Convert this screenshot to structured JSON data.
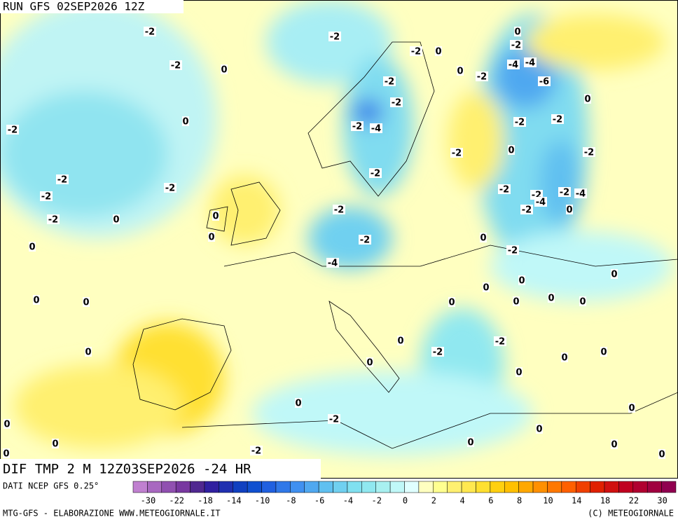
{
  "header": {
    "run": "RUN GFS 02SEP2026 12Z",
    "product": "DIF TMP 2 M 12Z03SEP2026 -24 HR"
  },
  "map": {
    "labels": [
      -2,
      -2,
      -2,
      0,
      0,
      -2,
      -2,
      0,
      0,
      -2,
      -4,
      -4,
      -6,
      -2,
      -2,
      0,
      -2,
      0,
      -2,
      -4,
      -2,
      -2,
      -2,
      0,
      -2,
      -2,
      -2,
      -2,
      -2,
      -2,
      -2,
      -2,
      -4,
      -4,
      -2,
      0,
      -2,
      0,
      -2,
      0,
      0,
      0,
      -2,
      0,
      -2,
      -4,
      0,
      0,
      0,
      0,
      0,
      0,
      0,
      0,
      0,
      -2,
      0,
      -2,
      0,
      0,
      0,
      0,
      0,
      0,
      0,
      0,
      -2,
      0,
      0,
      0,
      -2,
      0,
      0,
      0
    ]
  },
  "colorbar": {
    "source": "DATI NCEP GFS 0.25°",
    "ticks": [
      -30,
      -22,
      -18,
      -14,
      -10,
      -8,
      -6,
      -4,
      -2,
      0,
      2,
      4,
      6,
      8,
      10,
      14,
      18,
      22,
      30
    ],
    "colors": [
      "#c080d0",
      "#a868c0",
      "#9050b0",
      "#7838a0",
      "#502890",
      "#3020a0",
      "#2030b0",
      "#1040c0",
      "#1050d0",
      "#2060e0",
      "#3078e8",
      "#4090f0",
      "#50a8f0",
      "#60c0f0",
      "#70d0f0",
      "#80e0f0",
      "#90e8f0",
      "#a8f0f0",
      "#c0f8f8",
      "#e0ffff",
      "#ffffc0",
      "#ffff90",
      "#fff070",
      "#ffe850",
      "#ffe030",
      "#ffd010",
      "#ffc000",
      "#ffa800",
      "#ff9000",
      "#ff7800",
      "#ff6000",
      "#f04000",
      "#e02000",
      "#d01010",
      "#c00020",
      "#b00030",
      "#a00040",
      "#900050"
    ]
  },
  "footer": {
    "left": "MTG-GFS - ELABORAZIONE WWW.METEOGIORNALE.IT",
    "right": "(C) METEOGIORNALE"
  }
}
